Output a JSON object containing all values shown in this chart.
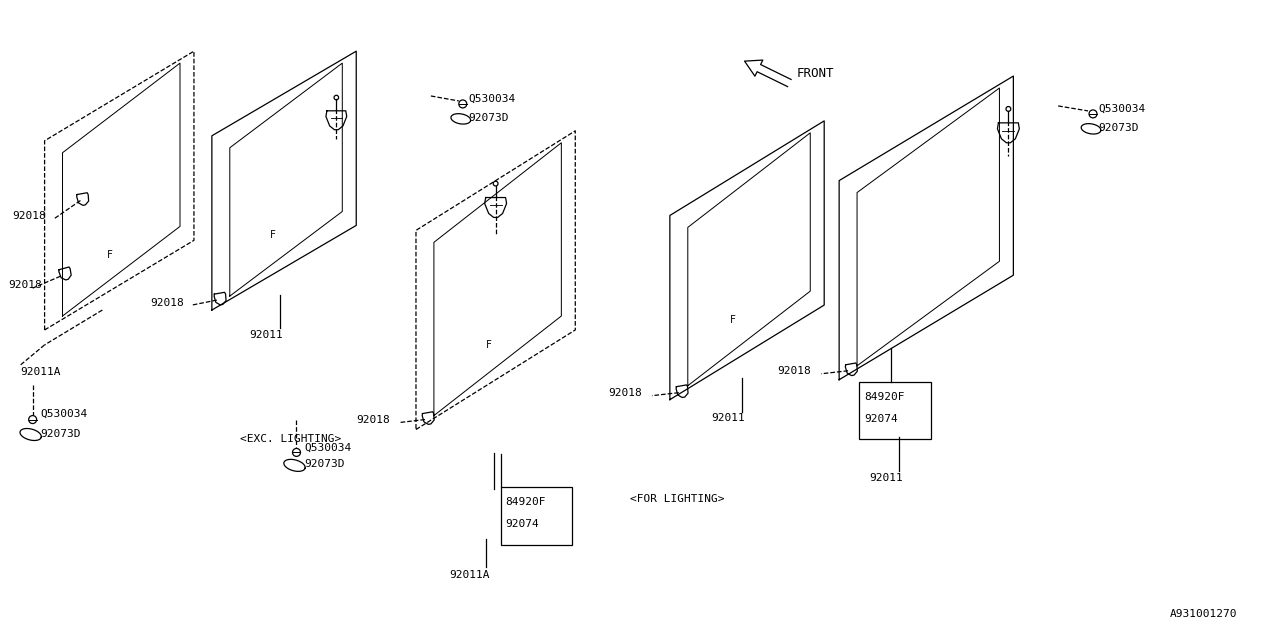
{
  "bg_color": "#ffffff",
  "line_color": "#000000",
  "text_color": "#000000",
  "font_size_label": 8,
  "diagram_id": "A931001270",
  "front_arrow_label": "FRONT",
  "exc_lighting_label": "<EXC. LIGHTING>",
  "for_lighting_label": "<FOR LIGHTING>"
}
